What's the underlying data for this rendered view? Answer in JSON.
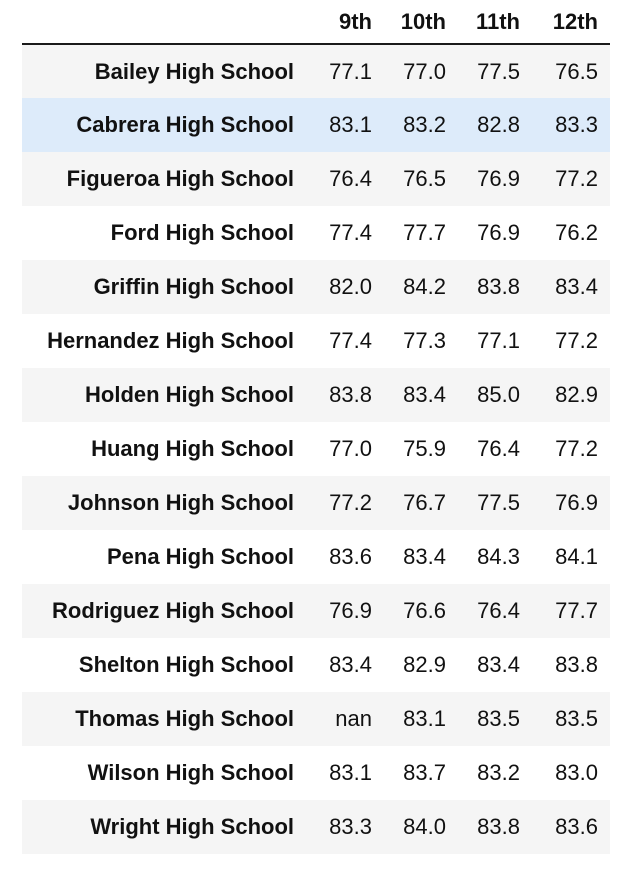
{
  "chart_data": {
    "type": "table",
    "columns": [
      "9th",
      "10th",
      "11th",
      "12th"
    ],
    "rows": [
      {
        "school": "Bailey High School",
        "values": [
          "77.1",
          "77.0",
          "77.5",
          "76.5"
        ]
      },
      {
        "school": "Cabrera High School",
        "values": [
          "83.1",
          "83.2",
          "82.8",
          "83.3"
        ]
      },
      {
        "school": "Figueroa High School",
        "values": [
          "76.4",
          "76.5",
          "76.9",
          "77.2"
        ]
      },
      {
        "school": "Ford High School",
        "values": [
          "77.4",
          "77.7",
          "76.9",
          "76.2"
        ]
      },
      {
        "school": "Griffin High School",
        "values": [
          "82.0",
          "84.2",
          "83.8",
          "83.4"
        ]
      },
      {
        "school": "Hernandez High School",
        "values": [
          "77.4",
          "77.3",
          "77.1",
          "77.2"
        ]
      },
      {
        "school": "Holden High School",
        "values": [
          "83.8",
          "83.4",
          "85.0",
          "82.9"
        ]
      },
      {
        "school": "Huang High School",
        "values": [
          "77.0",
          "75.9",
          "76.4",
          "77.2"
        ]
      },
      {
        "school": "Johnson High School",
        "values": [
          "77.2",
          "76.7",
          "77.5",
          "76.9"
        ]
      },
      {
        "school": "Pena High School",
        "values": [
          "83.6",
          "83.4",
          "84.3",
          "84.1"
        ]
      },
      {
        "school": "Rodriguez High School",
        "values": [
          "76.9",
          "76.6",
          "76.4",
          "77.7"
        ]
      },
      {
        "school": "Shelton High School",
        "values": [
          "83.4",
          "82.9",
          "83.4",
          "83.8"
        ]
      },
      {
        "school": "Thomas High School",
        "values": [
          "nan",
          "83.1",
          "83.5",
          "83.5"
        ]
      },
      {
        "school": "Wilson High School",
        "values": [
          "83.1",
          "83.7",
          "83.2",
          "83.0"
        ]
      },
      {
        "school": "Wright High School",
        "values": [
          "83.3",
          "84.0",
          "83.8",
          "83.6"
        ]
      }
    ],
    "highlighted_row": 1
  },
  "colors": {
    "stripe": "#f5f5f5",
    "highlight": "#ddebfa",
    "rule": "#1a1a1a"
  }
}
